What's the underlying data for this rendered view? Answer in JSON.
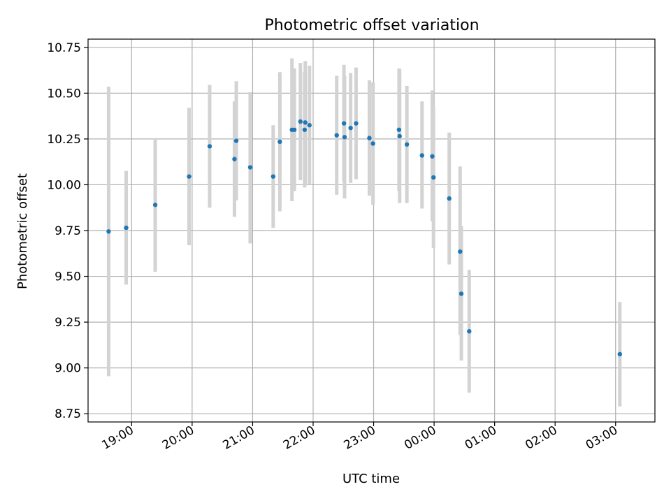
{
  "chart_data": {
    "type": "scatter",
    "title": "Photometric offset variation",
    "xlabel": "UTC time",
    "ylabel": "Photometric offset",
    "x_axis": {
      "unit": "UTC time (hours from 18:00)",
      "range": [
        0.28,
        9.65
      ],
      "ticks": [
        1,
        2,
        3,
        4,
        5,
        6,
        7,
        8,
        9
      ],
      "tick_labels": [
        "19:00",
        "20:00",
        "21:00",
        "22:00",
        "23:00",
        "00:00",
        "01:00",
        "02:00",
        "03:00"
      ]
    },
    "y_axis": {
      "range": [
        8.705,
        10.795
      ],
      "ticks": [
        8.75,
        9.0,
        9.25,
        9.5,
        9.75,
        10.0,
        10.25,
        10.5,
        10.75
      ],
      "tick_labels": [
        "8.75",
        "9.00",
        "9.25",
        "9.50",
        "9.75",
        "10.00",
        "10.25",
        "10.50",
        "10.75"
      ]
    },
    "grid": true,
    "colors": {
      "point": "#1f77b4",
      "errorbar": "#d3d3d3",
      "grid": "#b0b0b0"
    },
    "points": [
      {
        "x": 0.62,
        "y": 9.745,
        "ylo": 8.955,
        "yhi": 10.535
      },
      {
        "x": 0.91,
        "y": 9.765,
        "ylo": 9.455,
        "yhi": 10.075
      },
      {
        "x": 1.39,
        "y": 9.89,
        "ylo": 9.525,
        "yhi": 10.255
      },
      {
        "x": 1.95,
        "y": 10.045,
        "ylo": 9.67,
        "yhi": 10.42
      },
      {
        "x": 2.29,
        "y": 10.21,
        "ylo": 9.875,
        "yhi": 10.545
      },
      {
        "x": 2.7,
        "y": 10.14,
        "ylo": 9.825,
        "yhi": 10.455
      },
      {
        "x": 2.73,
        "y": 10.24,
        "ylo": 9.915,
        "yhi": 10.565
      },
      {
        "x": 2.96,
        "y": 10.095,
        "ylo": 9.68,
        "yhi": 10.505
      },
      {
        "x": 3.34,
        "y": 10.045,
        "ylo": 9.765,
        "yhi": 10.325
      },
      {
        "x": 3.45,
        "y": 10.235,
        "ylo": 9.855,
        "yhi": 10.615
      },
      {
        "x": 3.65,
        "y": 10.3,
        "ylo": 9.91,
        "yhi": 10.69
      },
      {
        "x": 3.69,
        "y": 10.3,
        "ylo": 9.965,
        "yhi": 10.635
      },
      {
        "x": 3.79,
        "y": 10.345,
        "ylo": 10.025,
        "yhi": 10.665
      },
      {
        "x": 3.86,
        "y": 10.3,
        "ylo": 9.985,
        "yhi": 10.615
      },
      {
        "x": 3.87,
        "y": 10.34,
        "ylo": 10.005,
        "yhi": 10.675
      },
      {
        "x": 3.94,
        "y": 10.325,
        "ylo": 10.0,
        "yhi": 10.65
      },
      {
        "x": 4.39,
        "y": 10.27,
        "ylo": 9.945,
        "yhi": 10.595
      },
      {
        "x": 4.51,
        "y": 10.335,
        "ylo": 10.015,
        "yhi": 10.655
      },
      {
        "x": 4.52,
        "y": 10.26,
        "ylo": 9.925,
        "yhi": 10.595
      },
      {
        "x": 4.62,
        "y": 10.31,
        "ylo": 10.01,
        "yhi": 10.61
      },
      {
        "x": 4.71,
        "y": 10.335,
        "ylo": 10.03,
        "yhi": 10.64
      },
      {
        "x": 4.93,
        "y": 10.255,
        "ylo": 9.94,
        "yhi": 10.57
      },
      {
        "x": 4.99,
        "y": 10.225,
        "ylo": 9.89,
        "yhi": 10.56
      },
      {
        "x": 5.42,
        "y": 10.3,
        "ylo": 9.965,
        "yhi": 10.635
      },
      {
        "x": 5.43,
        "y": 10.265,
        "ylo": 9.9,
        "yhi": 10.63
      },
      {
        "x": 5.55,
        "y": 10.22,
        "ylo": 9.9,
        "yhi": 10.54
      },
      {
        "x": 5.8,
        "y": 10.16,
        "ylo": 9.87,
        "yhi": 10.455
      },
      {
        "x": 5.97,
        "y": 10.155,
        "ylo": 9.8,
        "yhi": 10.515
      },
      {
        "x": 5.99,
        "y": 10.04,
        "ylo": 9.655,
        "yhi": 10.425
      },
      {
        "x": 6.25,
        "y": 9.925,
        "ylo": 9.565,
        "yhi": 10.285
      },
      {
        "x": 6.43,
        "y": 9.635,
        "ylo": 9.18,
        "yhi": 10.1
      },
      {
        "x": 6.45,
        "y": 9.405,
        "ylo": 9.04,
        "yhi": 9.775
      },
      {
        "x": 6.58,
        "y": 9.2,
        "ylo": 8.865,
        "yhi": 9.535
      },
      {
        "x": 9.07,
        "y": 9.075,
        "ylo": 8.79,
        "yhi": 9.36
      }
    ]
  }
}
